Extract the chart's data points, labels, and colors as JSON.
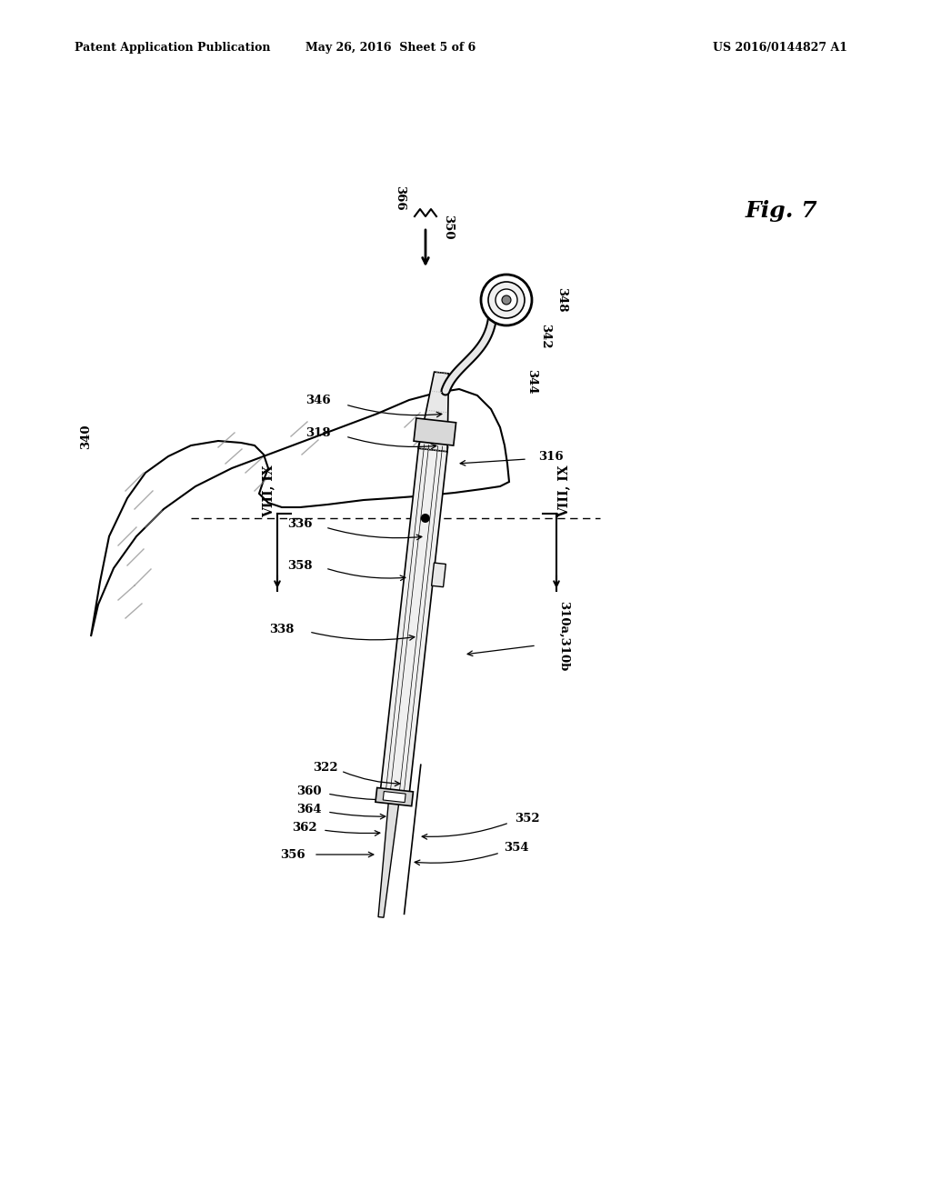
{
  "background_color": "#ffffff",
  "header_left": "Patent Application Publication",
  "header_center": "May 26, 2016  Sheet 5 of 6",
  "header_right": "US 2016/0144827 A1",
  "fig_label": "Fig. 7"
}
